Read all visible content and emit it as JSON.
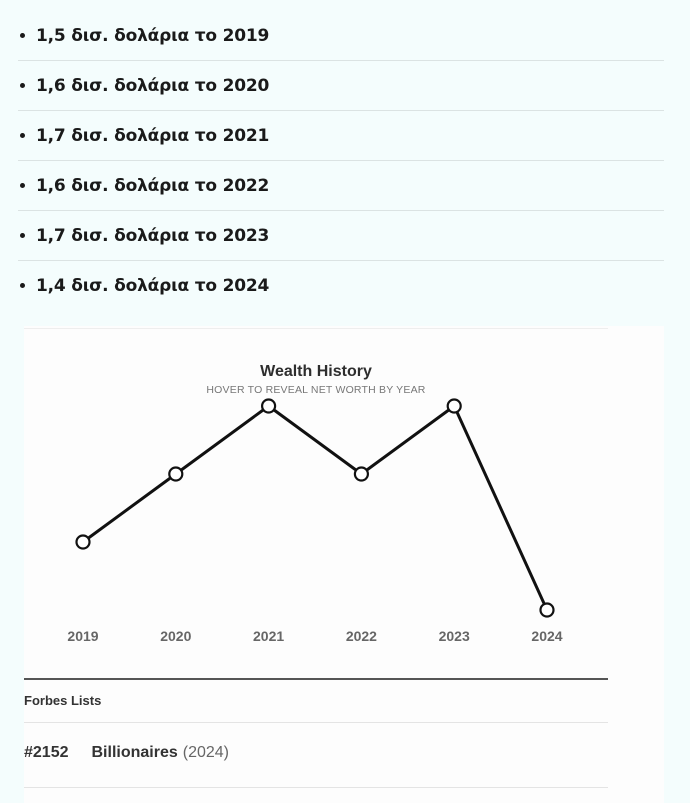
{
  "net_worth_list": [
    {
      "text": "1,5 δισ. δολάρια το 2019"
    },
    {
      "text": "1,6 δισ. δολάρια το 2020"
    },
    {
      "text": "1,7 δισ. δολάρια το 2021"
    },
    {
      "text": "1,6 δισ. δολάρια το 2022"
    },
    {
      "text": "1,7 δισ. δολάρια το 2023"
    },
    {
      "text": "1,4 δισ. δολάρια το 2024"
    }
  ],
  "chart_data": {
    "type": "line",
    "title": "Wealth History",
    "subtitle": "HOVER TO REVEAL NET WORTH BY YEAR",
    "x": [
      "2019",
      "2020",
      "2021",
      "2022",
      "2023",
      "2024"
    ],
    "series": [
      {
        "values": [
          1.5,
          1.6,
          1.7,
          1.6,
          1.7,
          1.4
        ]
      }
    ],
    "xlabel": "",
    "ylabel": "",
    "ylim": [
      1.4,
      1.7
    ],
    "grid": false,
    "line_color": "#111111",
    "marker_fill": "#ffffff"
  },
  "forbes_lists": {
    "label": "Forbes Lists",
    "entries": [
      {
        "rank": "#2152",
        "list": "Billionaires",
        "year": "2024"
      }
    ]
  }
}
